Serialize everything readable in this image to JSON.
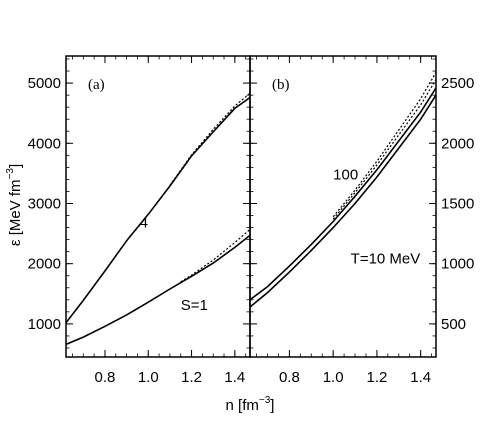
{
  "chart_data": [
    {
      "panel": "(a)",
      "type": "line",
      "xlabel": "n [fm",
      "xlabel_sup": "−3",
      "xlabel_end": "]",
      "ylabel": "ε [MeV fm",
      "ylabel_sup": "−3",
      "ylabel_end": "]",
      "xlim": [
        0.62,
        1.47
      ],
      "ylim": [
        450,
        5450
      ],
      "x_ticks": [
        0.8,
        1.0,
        1.2,
        1.4
      ],
      "x_tick_labels": [
        "0.8",
        "1.0",
        "1.2",
        "1.4"
      ],
      "y_ticks": [
        1000,
        2000,
        3000,
        4000,
        5000
      ],
      "y_tick_labels": [
        "1000",
        "2000",
        "3000",
        "4000",
        "5000"
      ],
      "y_axis_side": "left",
      "series": [
        {
          "style": "solid",
          "x": [
            0.62,
            0.7,
            0.8,
            0.9,
            1.0,
            1.1,
            1.2,
            1.3,
            1.4,
            1.47
          ],
          "y": [
            1020,
            1390,
            1880,
            2380,
            2820,
            3290,
            3790,
            4190,
            4580,
            4760
          ]
        },
        {
          "style": "dotted",
          "x": [
            1.1,
            1.2,
            1.3,
            1.4,
            1.47
          ],
          "y": [
            3300,
            3810,
            4230,
            4620,
            4830
          ]
        },
        {
          "style": "solid",
          "x": [
            0.62,
            0.7,
            0.8,
            0.9,
            1.0,
            1.1,
            1.2,
            1.3,
            1.4,
            1.47
          ],
          "y": [
            660,
            780,
            960,
            1150,
            1360,
            1580,
            1790,
            2010,
            2270,
            2470
          ]
        },
        {
          "style": "dotted",
          "x": [
            1.15,
            1.2,
            1.3,
            1.4,
            1.47
          ],
          "y": [
            1700,
            1810,
            2060,
            2350,
            2570
          ]
        }
      ],
      "annotations": [
        {
          "text": "4",
          "x": 0.96,
          "y": 2600
        },
        {
          "text": "S=1",
          "x": 1.15,
          "y": 1230
        }
      ]
    },
    {
      "panel": "(b)",
      "type": "line",
      "xlim": [
        0.62,
        1.47
      ],
      "ylim": [
        225,
        2725
      ],
      "x_ticks": [
        0.8,
        1.0,
        1.2,
        1.4
      ],
      "x_tick_labels": [
        "0.8",
        "1.0",
        "1.2",
        "1.4"
      ],
      "y_ticks": [
        500,
        1000,
        1500,
        2000,
        2500
      ],
      "y_tick_labels": [
        "500",
        "1000",
        "1500",
        "2000",
        "2500"
      ],
      "y_axis_side": "right",
      "series": [
        {
          "style": "solid",
          "x": [
            0.62,
            0.7,
            0.8,
            0.9,
            1.0,
            1.1,
            1.2,
            1.3,
            1.4,
            1.47
          ],
          "y": [
            640,
            760,
            930,
            1110,
            1300,
            1500,
            1720,
            1960,
            2200,
            2400
          ]
        },
        {
          "style": "solid",
          "x": [
            0.62,
            0.7,
            0.8,
            0.9,
            1.0,
            1.1,
            1.2,
            1.3,
            1.4,
            1.47
          ],
          "y": [
            700,
            810,
            980,
            1160,
            1350,
            1560,
            1780,
            2020,
            2260,
            2460
          ]
        },
        {
          "style": "dotted",
          "x": [
            1.0,
            1.1,
            1.2,
            1.3,
            1.4,
            1.47
          ],
          "y": [
            1370,
            1590,
            1820,
            2070,
            2320,
            2530
          ]
        },
        {
          "style": "dotted",
          "x": [
            1.0,
            1.1,
            1.2,
            1.3,
            1.4,
            1.47
          ],
          "y": [
            1390,
            1610,
            1850,
            2110,
            2370,
            2590
          ]
        }
      ],
      "annotations": [
        {
          "text": "100",
          "x": 1.0,
          "y": 1700
        },
        {
          "text": "T=10 MeV",
          "x": 1.08,
          "y": 1000
        }
      ]
    }
  ]
}
